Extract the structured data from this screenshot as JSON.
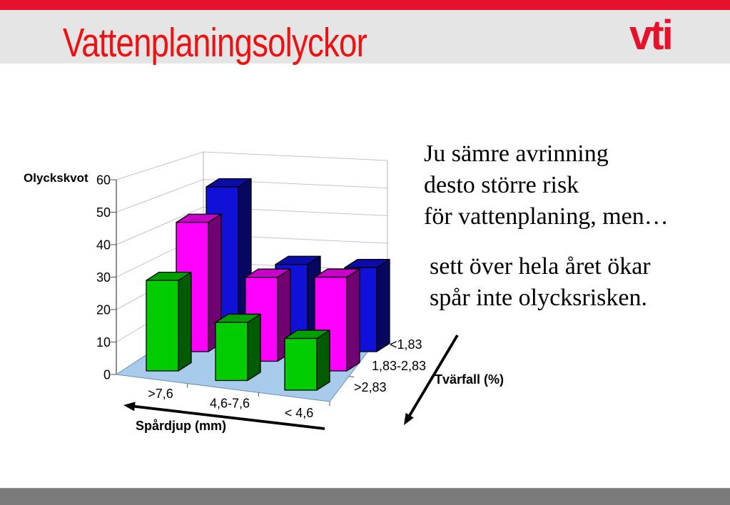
{
  "slide": {
    "title": "Vattenplaningsolyckor",
    "logo_text": "vti",
    "accent_red": "#e8112d",
    "title_red": "#ee1111",
    "header_band_gray": "#e5e5e5",
    "footer_gray": "#7b7b7b"
  },
  "annotations": {
    "line1": "Ju sämre avrinning",
    "line2": "desto större risk",
    "line3": "för vattenplaning, men…",
    "line4": "sett över hela året ökar",
    "line5": "spår inte olycksrisken."
  },
  "chart_data": {
    "type": "bar",
    "style": "3d-column",
    "value_axis_title": "Olyckskvot",
    "category_axis_title": "Spårdjup (mm)",
    "series_axis_title": "Tvärfall (%)",
    "categories": [
      ">7,6",
      "4,6-7,6",
      "< 4,6"
    ],
    "series": [
      {
        "name": "<1,83",
        "color": "#1010d8",
        "values": [
          45,
          24,
          26
        ]
      },
      {
        "name": "1,83-2,83",
        "color": "#ff00ff",
        "values": [
          40,
          26,
          29
        ]
      },
      {
        "name": ">2,83",
        "color": "#00cc00",
        "values": [
          28,
          18,
          16
        ]
      }
    ],
    "value_ticks": [
      0,
      10,
      20,
      30,
      40,
      50,
      60
    ],
    "ylim": [
      0,
      60
    ],
    "grid": true,
    "legend": "none",
    "floor_color": "#a9cbeb",
    "gridline_color": "#c4c4c4"
  }
}
